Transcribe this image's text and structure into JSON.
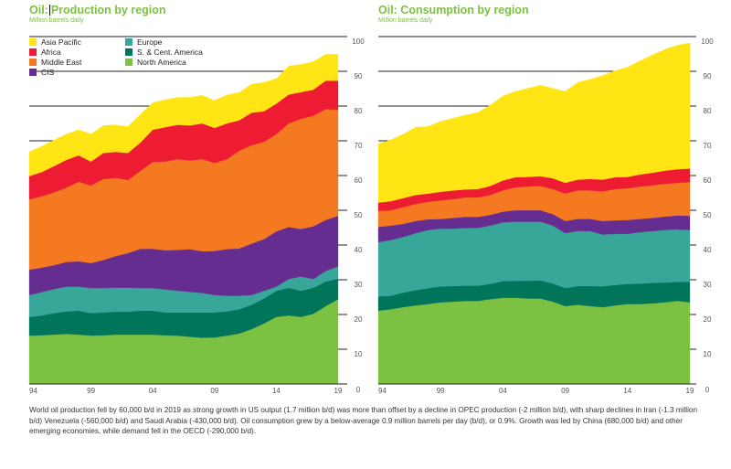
{
  "charts": {
    "production": {
      "title_part1": "Oil:",
      "title_part2": "Production by region",
      "subtitle": "Million barrels daily"
    },
    "consumption": {
      "title": "Oil: Consumption by region",
      "subtitle": "Million barrels daily"
    }
  },
  "legend": [
    {
      "label": "Asia Pacific",
      "color": "#ffe514"
    },
    {
      "label": "Africa",
      "color": "#ee1c33"
    },
    {
      "label": "Middle East",
      "color": "#f47920"
    },
    {
      "label": "CIS",
      "color": "#662d91"
    },
    {
      "label": "Europe",
      "color": "#38a79a"
    },
    {
      "label": "S. & Cent. America",
      "color": "#00755a"
    },
    {
      "label": "North America",
      "color": "#7dc142"
    }
  ],
  "caption": "World oil production fell by 60,000 b/d in 2019 as strong growth in US output (1.7 million b/d) was more than offset by a decline in OPEC production (-2 million b/d), with sharp declines in Iran (-1.3 million b/d) Venezuela (-560,000 b/d) and Saudi Arabia (-430,000 b/d). Oil consumption grew by a below-average 0.9 million barrels per day (b/d), or 0.9%. Growth was led by China (680,000 b/d) and other emerging economies, while demand fell in the OECD (-290,000 b/d).",
  "chart_data": [
    {
      "type": "area",
      "stacked": true,
      "title": "Oil: Production by region",
      "subtitle": "Million barrels daily",
      "xlabel": "",
      "ylabel": "Million barrels daily",
      "x": [
        1994,
        1995,
        1996,
        1997,
        1998,
        1999,
        2000,
        2001,
        2002,
        2003,
        2004,
        2005,
        2006,
        2007,
        2008,
        2009,
        2010,
        2011,
        2012,
        2013,
        2014,
        2015,
        2016,
        2017,
        2018,
        2019
      ],
      "x_tick_labels": [
        "94",
        "99",
        "04",
        "09",
        "14",
        "19"
      ],
      "x_tick_values": [
        1994,
        1999,
        2004,
        2009,
        2014,
        2019
      ],
      "y_ticks": [
        0,
        10,
        20,
        30,
        40,
        50,
        60,
        70,
        80,
        90,
        100
      ],
      "ylim": [
        0,
        100
      ],
      "y_axis_side": "right",
      "grid": true,
      "legend_position": "top-left",
      "series": [
        {
          "name": "North America",
          "color": "#7dc142",
          "values": [
            13.9,
            14.0,
            14.2,
            14.4,
            14.2,
            13.9,
            14.0,
            14.2,
            14.2,
            14.2,
            14.2,
            14.0,
            13.9,
            13.6,
            13.3,
            13.4,
            13.9,
            14.5,
            15.8,
            17.4,
            19.3,
            19.7,
            19.3,
            20.2,
            22.4,
            24.4
          ]
        },
        {
          "name": "S. & Cent. America",
          "color": "#00755a",
          "values": [
            5.4,
            5.7,
            6.2,
            6.5,
            6.9,
            6.5,
            6.6,
            6.6,
            6.6,
            6.9,
            6.9,
            6.6,
            6.7,
            7.0,
            7.3,
            7.2,
            7.0,
            7.0,
            7.0,
            7.2,
            7.5,
            8.0,
            7.5,
            7.5,
            7.1,
            5.9
          ]
        },
        {
          "name": "Europe",
          "color": "#38a79a",
          "values": [
            6.3,
            6.7,
            6.9,
            7.1,
            6.9,
            7.2,
            7.0,
            6.9,
            6.9,
            6.5,
            6.5,
            6.6,
            6.2,
            5.9,
            5.6,
            5.0,
            4.5,
            3.9,
            2.8,
            2.2,
            1.2,
            2.5,
            4.1,
            2.5,
            3.0,
            3.5
          ]
        },
        {
          "name": "CIS",
          "color": "#662d91",
          "values": [
            7.3,
            7.1,
            6.9,
            7.1,
            7.3,
            7.2,
            8.1,
            9.1,
            10.0,
            11.3,
            11.3,
            11.3,
            11.8,
            12.3,
            12.0,
            12.7,
            13.4,
            13.6,
            14.8,
            14.9,
            15.9,
            15.0,
            13.7,
            15.2,
            14.7,
            14.6
          ]
        },
        {
          "name": "Middle East",
          "color": "#f47920",
          "values": [
            20.2,
            20.5,
            20.9,
            21.4,
            22.9,
            22.3,
            23.3,
            22.5,
            21.0,
            22.4,
            25.0,
            25.5,
            26.1,
            25.5,
            26.5,
            25.3,
            25.9,
            28.1,
            28.3,
            28.0,
            28.0,
            29.8,
            31.7,
            31.8,
            31.9,
            30.5
          ]
        },
        {
          "name": "Africa",
          "color": "#ee1c33",
          "values": [
            6.7,
            7.0,
            7.6,
            8.0,
            7.6,
            6.9,
            7.5,
            7.5,
            7.8,
            8.2,
            9.3,
            9.9,
            9.9,
            10.1,
            10.3,
            10.1,
            10.3,
            8.8,
            9.4,
            8.8,
            8.8,
            8.3,
            7.7,
            7.5,
            8.2,
            8.4
          ]
        },
        {
          "name": "Asia Pacific",
          "color": "#ffe514",
          "values": [
            7.0,
            7.4,
            7.5,
            7.4,
            7.4,
            7.9,
            7.9,
            7.8,
            7.6,
            8.1,
            7.8,
            7.9,
            7.9,
            8.1,
            8.1,
            7.9,
            8.2,
            8.0,
            8.2,
            8.3,
            7.2,
            8.2,
            8.0,
            8.1,
            7.6,
            7.6
          ]
        }
      ]
    },
    {
      "type": "area",
      "stacked": true,
      "title": "Oil: Consumption by region",
      "subtitle": "Million barrels daily",
      "xlabel": "",
      "ylabel": "Million barrels daily",
      "x": [
        1994,
        1995,
        1996,
        1997,
        1998,
        1999,
        2000,
        2001,
        2002,
        2003,
        2004,
        2005,
        2006,
        2007,
        2008,
        2009,
        2010,
        2011,
        2012,
        2013,
        2014,
        2015,
        2016,
        2017,
        2018,
        2019
      ],
      "x_tick_labels": [
        "94",
        "99",
        "04",
        "09",
        "14",
        "19"
      ],
      "x_tick_values": [
        1994,
        1999,
        2004,
        2009,
        2014,
        2019
      ],
      "y_ticks": [
        0,
        10,
        20,
        30,
        40,
        50,
        60,
        70,
        80,
        90,
        100
      ],
      "ylim": [
        0,
        100
      ],
      "y_axis_side": "right",
      "grid": true,
      "series": [
        {
          "name": "North America",
          "color": "#7dc142",
          "values": [
            21.1,
            21.5,
            22.1,
            22.6,
            23.0,
            23.5,
            23.7,
            23.9,
            23.9,
            24.4,
            24.8,
            24.8,
            24.6,
            24.6,
            23.7,
            22.4,
            22.8,
            22.4,
            22.1,
            22.6,
            23.0,
            23.0,
            23.2,
            23.5,
            23.9,
            23.5
          ]
        },
        {
          "name": "S. & Cent. America",
          "color": "#00755a",
          "values": [
            4.1,
            3.9,
            4.2,
            4.4,
            4.6,
            4.6,
            4.5,
            4.4,
            4.4,
            4.4,
            4.8,
            4.9,
            5.1,
            5.2,
            5.2,
            5.2,
            5.4,
            5.8,
            6.0,
            5.9,
            5.8,
            5.9,
            5.9,
            5.7,
            5.5,
            5.9
          ]
        },
        {
          "name": "Europe",
          "color": "#38a79a",
          "values": [
            15.6,
            16.0,
            16.0,
            16.4,
            16.7,
            16.6,
            16.5,
            16.6,
            16.6,
            16.8,
            16.9,
            17.0,
            17.0,
            16.9,
            16.7,
            15.8,
            15.8,
            15.8,
            14.9,
            14.7,
            14.4,
            14.8,
            14.9,
            15.1,
            15.1,
            14.9
          ]
        },
        {
          "name": "CIS",
          "color": "#662d91",
          "values": [
            4.4,
            4.2,
            3.8,
            3.5,
            3.1,
            2.8,
            3.1,
            3.2,
            3.2,
            3.1,
            3.1,
            3.3,
            3.3,
            3.3,
            3.3,
            3.5,
            3.5,
            3.5,
            3.9,
            3.9,
            4.0,
            3.8,
            3.8,
            3.9,
            4.0,
            4.1
          ]
        },
        {
          "name": "Middle East",
          "color": "#f47920",
          "values": [
            4.6,
            4.4,
            4.8,
            4.9,
            5.0,
            5.3,
            5.4,
            5.6,
            5.6,
            5.7,
            6.1,
            6.6,
            6.8,
            7.0,
            7.2,
            7.9,
            8.2,
            8.2,
            8.5,
            9.0,
            9.1,
            9.3,
            9.4,
            9.4,
            9.4,
            9.7
          ]
        },
        {
          "name": "Africa",
          "color": "#ee1c33",
          "values": [
            2.4,
            2.6,
            2.6,
            2.6,
            2.4,
            2.5,
            2.5,
            2.3,
            2.4,
            2.6,
            2.9,
            2.9,
            2.8,
            2.8,
            3.1,
            3.1,
            3.1,
            3.3,
            3.4,
            3.4,
            3.3,
            3.5,
            3.6,
            3.8,
            3.9,
            3.9
          ]
        },
        {
          "name": "Asia Pacific",
          "color": "#ffe514",
          "values": [
            16.9,
            17.7,
            18.4,
            19.5,
            19.3,
            20.3,
            20.8,
            21.4,
            22.1,
            23.3,
            24.3,
            24.7,
            25.5,
            26.2,
            25.9,
            26.3,
            28.0,
            28.7,
            30.0,
            30.7,
            31.6,
            32.7,
            33.9,
            34.9,
            35.7,
            36.2
          ]
        }
      ]
    }
  ]
}
